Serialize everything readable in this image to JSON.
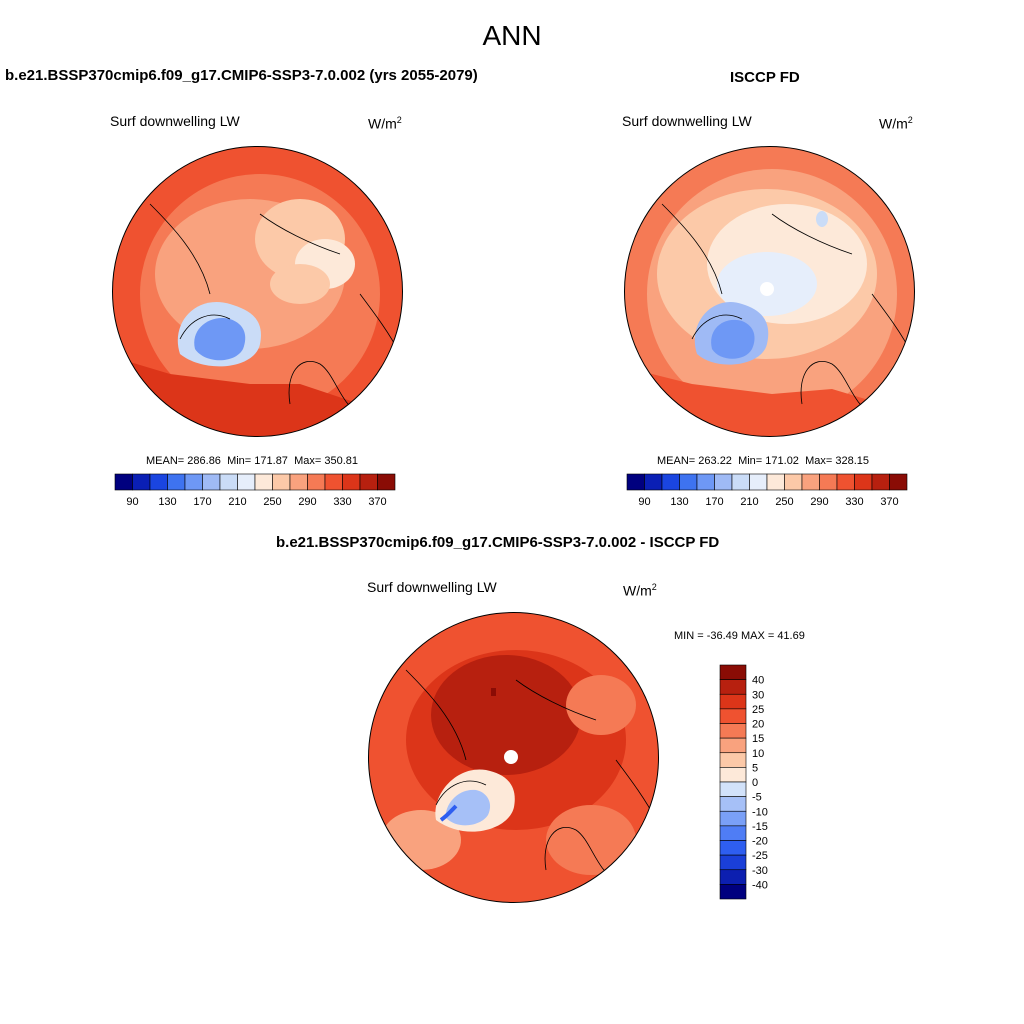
{
  "title": "ANN",
  "panels": [
    {
      "id": "model",
      "title": "b.e21.BSSP370cmip6.f09_g17.CMIP6-SSP3-7.0.002 (yrs 2055-2079)",
      "variable": "Surf downwelling LW",
      "units_base": "W/m",
      "units_exp": "2",
      "stats": {
        "mean_label": "MEAN=",
        "mean": "286.86",
        "min_label": "Min=",
        "min": "171.87",
        "max_label": "Max=",
        "max": "350.81"
      },
      "colorbar_ticks": [
        "90",
        "130",
        "170",
        "210",
        "250",
        "290",
        "330",
        "370"
      ]
    },
    {
      "id": "obs",
      "title": "ISCCP FD",
      "variable": "Surf downwelling LW",
      "units_base": "W/m",
      "units_exp": "2",
      "stats": {
        "mean_label": "MEAN=",
        "mean": "263.22",
        "min_label": "Min=",
        "min": "171.02",
        "max_label": "Max=",
        "max": "328.15"
      },
      "colorbar_ticks": [
        "90",
        "130",
        "170",
        "210",
        "250",
        "290",
        "330",
        "370"
      ]
    },
    {
      "id": "diff",
      "title": "b.e21.BSSP370cmip6.f09_g17.CMIP6-SSP3-7.0.002 - ISCCP FD",
      "variable": "Surf downwelling LW",
      "units_base": "W/m",
      "units_exp": "2",
      "stats_text": "MIN = -36.49 MAX =  41.69",
      "colorbar_ticks": [
        "40",
        "30",
        "25",
        "20",
        "15",
        "10",
        "5",
        "0",
        "-5",
        "-10",
        "-15",
        "-20",
        "-25",
        "-30",
        "-40"
      ]
    }
  ],
  "colors": {
    "abs_scale": [
      "#00007f",
      "#0a1fb5",
      "#1a45e0",
      "#3e73f0",
      "#6e98f5",
      "#9fbaf5",
      "#cadcf7",
      "#e6eefb",
      "#fde9d9",
      "#fcc9a8",
      "#f9a27e",
      "#f57a55",
      "#ef5230",
      "#dc3519",
      "#b7200f",
      "#8a0c05"
    ],
    "diff_scale": [
      "#00007f",
      "#0c1fb0",
      "#1a3fd8",
      "#2e5ef0",
      "#4f7df5",
      "#7aa0f7",
      "#a6c0f7",
      "#d2e2fa",
      "#fde9d9",
      "#fcc9a8",
      "#f9a27e",
      "#f57a55",
      "#ef5230",
      "#dc3519",
      "#b7200f",
      "#8a0c05"
    ],
    "land_outline": "#000000"
  }
}
